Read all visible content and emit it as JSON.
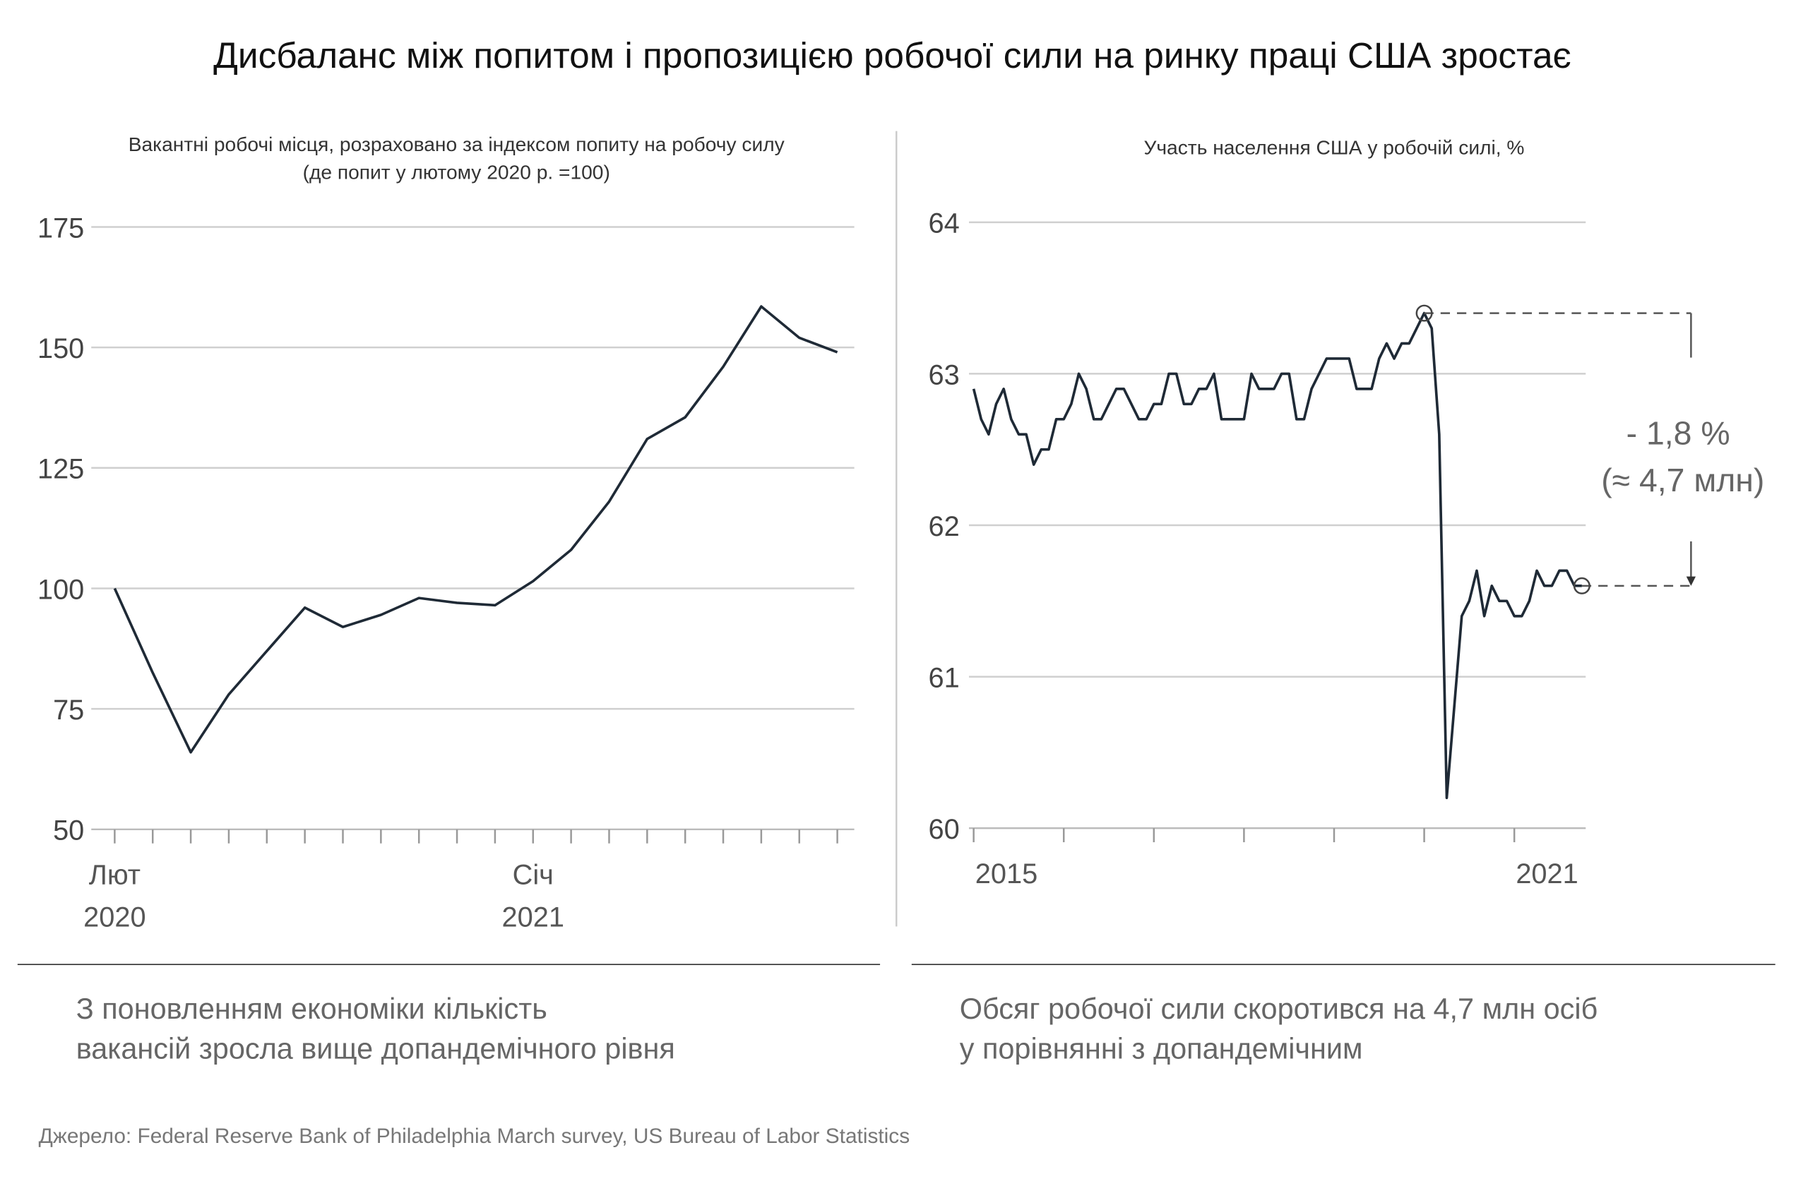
{
  "title": "Дисбаланс між попитом і пропозицією робочої сили на ринку праці США зростає",
  "source": "Джерело: Federal Reserve Bank of Philadelphia March survey, US Bureau of Labor Statistics",
  "chart_data": [
    {
      "type": "line",
      "title_line1": "Вакантні робочі місця, розраховано за індексом попиту на робочу силу",
      "title_line2": "(де попит у лютому 2020 р. =100)",
      "caption_line1": "З поновленням економіки кількість",
      "caption_line2": "вакансій зросла вище допандемічного рівня",
      "x_labels": [
        {
          "month": "Лют",
          "year": "2020",
          "index": 0
        },
        {
          "month": "Січ",
          "year": "2021",
          "index": 11
        }
      ],
      "yticks": [
        "50",
        "75",
        "100",
        "125",
        "150",
        "175"
      ],
      "ylim": [
        50,
        175
      ],
      "x_start": "2020-02",
      "frequency": "monthly",
      "values": [
        100,
        82.5,
        66,
        78,
        87,
        96,
        92,
        94.5,
        98,
        97,
        96.5,
        101.5,
        108,
        118,
        131,
        135.5,
        146,
        158.5,
        152,
        149
      ],
      "grid": true,
      "line_color": "#1f2a36"
    },
    {
      "type": "line",
      "title": "Участь населення США у робочій силі, %",
      "caption_line1": "Обсяг робочої сили скоротився на 4,7 млн осіб",
      "caption_line2": "у порівнянні з допандемічним",
      "x_labels": [
        {
          "label": "2015",
          "index": 0
        },
        {
          "label": "2021",
          "index": 72
        }
      ],
      "yticks": [
        "60",
        "61",
        "62",
        "63",
        "64"
      ],
      "ylim": [
        60,
        64
      ],
      "x_start": "2015-01",
      "frequency": "monthly",
      "values": [
        62.9,
        62.7,
        62.6,
        62.8,
        62.9,
        62.7,
        62.6,
        62.6,
        62.4,
        62.5,
        62.5,
        62.7,
        62.7,
        62.8,
        63.0,
        62.9,
        62.7,
        62.7,
        62.8,
        62.9,
        62.9,
        62.8,
        62.7,
        62.7,
        62.8,
        62.8,
        63.0,
        63.0,
        62.8,
        62.8,
        62.9,
        62.9,
        63.0,
        62.7,
        62.7,
        62.7,
        62.7,
        63.0,
        62.9,
        62.9,
        62.9,
        63.0,
        63.0,
        62.7,
        62.7,
        62.9,
        63.0,
        63.1,
        63.1,
        63.1,
        63.1,
        62.9,
        62.9,
        62.9,
        63.1,
        63.2,
        63.1,
        63.2,
        63.2,
        63.3,
        63.4,
        63.3,
        62.6,
        60.2,
        60.8,
        61.4,
        61.5,
        61.7,
        61.4,
        61.6,
        61.5,
        61.5,
        61.4,
        61.4,
        61.5,
        61.7,
        61.6,
        61.6,
        61.7,
        61.7,
        61.6,
        61.6
      ],
      "annotation_line1": "- 1,8 %",
      "annotation_line2": "(≈ 4,7 млн)",
      "peak_value": 63.4,
      "end_value": 61.6,
      "grid": true,
      "line_color": "#1f2a36"
    }
  ]
}
